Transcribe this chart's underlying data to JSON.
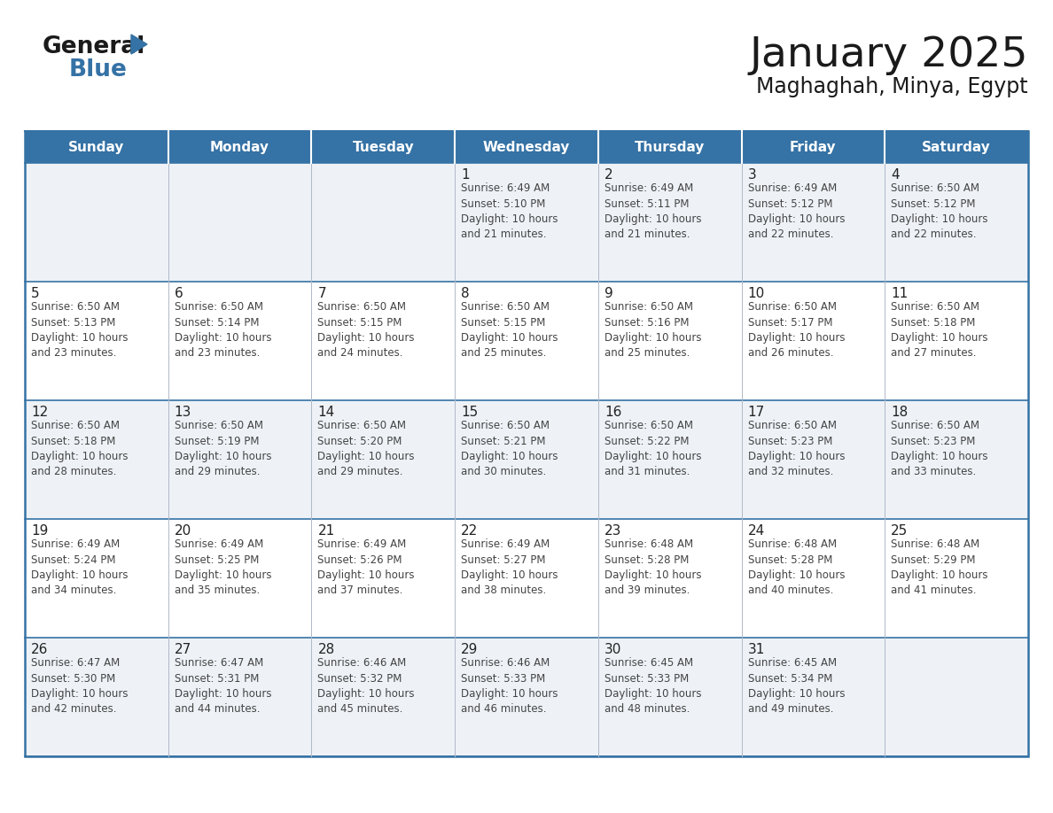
{
  "title": "January 2025",
  "subtitle": "Maghaghah, Minya, Egypt",
  "days_of_week": [
    "Sunday",
    "Monday",
    "Tuesday",
    "Wednesday",
    "Thursday",
    "Friday",
    "Saturday"
  ],
  "header_bg": "#3572a5",
  "header_text": "#ffffff",
  "cell_bg_light": "#eef2f7",
  "cell_bg_white": "#ffffff",
  "border_color": "#3572a5",
  "text_color": "#333333",
  "calendar": [
    [
      {
        "day": "",
        "info": ""
      },
      {
        "day": "",
        "info": ""
      },
      {
        "day": "",
        "info": ""
      },
      {
        "day": "1",
        "info": "Sunrise: 6:49 AM\nSunset: 5:10 PM\nDaylight: 10 hours\nand 21 minutes."
      },
      {
        "day": "2",
        "info": "Sunrise: 6:49 AM\nSunset: 5:11 PM\nDaylight: 10 hours\nand 21 minutes."
      },
      {
        "day": "3",
        "info": "Sunrise: 6:49 AM\nSunset: 5:12 PM\nDaylight: 10 hours\nand 22 minutes."
      },
      {
        "day": "4",
        "info": "Sunrise: 6:50 AM\nSunset: 5:12 PM\nDaylight: 10 hours\nand 22 minutes."
      }
    ],
    [
      {
        "day": "5",
        "info": "Sunrise: 6:50 AM\nSunset: 5:13 PM\nDaylight: 10 hours\nand 23 minutes."
      },
      {
        "day": "6",
        "info": "Sunrise: 6:50 AM\nSunset: 5:14 PM\nDaylight: 10 hours\nand 23 minutes."
      },
      {
        "day": "7",
        "info": "Sunrise: 6:50 AM\nSunset: 5:15 PM\nDaylight: 10 hours\nand 24 minutes."
      },
      {
        "day": "8",
        "info": "Sunrise: 6:50 AM\nSunset: 5:15 PM\nDaylight: 10 hours\nand 25 minutes."
      },
      {
        "day": "9",
        "info": "Sunrise: 6:50 AM\nSunset: 5:16 PM\nDaylight: 10 hours\nand 25 minutes."
      },
      {
        "day": "10",
        "info": "Sunrise: 6:50 AM\nSunset: 5:17 PM\nDaylight: 10 hours\nand 26 minutes."
      },
      {
        "day": "11",
        "info": "Sunrise: 6:50 AM\nSunset: 5:18 PM\nDaylight: 10 hours\nand 27 minutes."
      }
    ],
    [
      {
        "day": "12",
        "info": "Sunrise: 6:50 AM\nSunset: 5:18 PM\nDaylight: 10 hours\nand 28 minutes."
      },
      {
        "day": "13",
        "info": "Sunrise: 6:50 AM\nSunset: 5:19 PM\nDaylight: 10 hours\nand 29 minutes."
      },
      {
        "day": "14",
        "info": "Sunrise: 6:50 AM\nSunset: 5:20 PM\nDaylight: 10 hours\nand 29 minutes."
      },
      {
        "day": "15",
        "info": "Sunrise: 6:50 AM\nSunset: 5:21 PM\nDaylight: 10 hours\nand 30 minutes."
      },
      {
        "day": "16",
        "info": "Sunrise: 6:50 AM\nSunset: 5:22 PM\nDaylight: 10 hours\nand 31 minutes."
      },
      {
        "day": "17",
        "info": "Sunrise: 6:50 AM\nSunset: 5:23 PM\nDaylight: 10 hours\nand 32 minutes."
      },
      {
        "day": "18",
        "info": "Sunrise: 6:50 AM\nSunset: 5:23 PM\nDaylight: 10 hours\nand 33 minutes."
      }
    ],
    [
      {
        "day": "19",
        "info": "Sunrise: 6:49 AM\nSunset: 5:24 PM\nDaylight: 10 hours\nand 34 minutes."
      },
      {
        "day": "20",
        "info": "Sunrise: 6:49 AM\nSunset: 5:25 PM\nDaylight: 10 hours\nand 35 minutes."
      },
      {
        "day": "21",
        "info": "Sunrise: 6:49 AM\nSunset: 5:26 PM\nDaylight: 10 hours\nand 37 minutes."
      },
      {
        "day": "22",
        "info": "Sunrise: 6:49 AM\nSunset: 5:27 PM\nDaylight: 10 hours\nand 38 minutes."
      },
      {
        "day": "23",
        "info": "Sunrise: 6:48 AM\nSunset: 5:28 PM\nDaylight: 10 hours\nand 39 minutes."
      },
      {
        "day": "24",
        "info": "Sunrise: 6:48 AM\nSunset: 5:28 PM\nDaylight: 10 hours\nand 40 minutes."
      },
      {
        "day": "25",
        "info": "Sunrise: 6:48 AM\nSunset: 5:29 PM\nDaylight: 10 hours\nand 41 minutes."
      }
    ],
    [
      {
        "day": "26",
        "info": "Sunrise: 6:47 AM\nSunset: 5:30 PM\nDaylight: 10 hours\nand 42 minutes."
      },
      {
        "day": "27",
        "info": "Sunrise: 6:47 AM\nSunset: 5:31 PM\nDaylight: 10 hours\nand 44 minutes."
      },
      {
        "day": "28",
        "info": "Sunrise: 6:46 AM\nSunset: 5:32 PM\nDaylight: 10 hours\nand 45 minutes."
      },
      {
        "day": "29",
        "info": "Sunrise: 6:46 AM\nSunset: 5:33 PM\nDaylight: 10 hours\nand 46 minutes."
      },
      {
        "day": "30",
        "info": "Sunrise: 6:45 AM\nSunset: 5:33 PM\nDaylight: 10 hours\nand 48 minutes."
      },
      {
        "day": "31",
        "info": "Sunrise: 6:45 AM\nSunset: 5:34 PM\nDaylight: 10 hours\nand 49 minutes."
      },
      {
        "day": "",
        "info": ""
      }
    ]
  ],
  "logo_general_color": "#1a1a1a",
  "logo_blue_color": "#3572a5",
  "logo_triangle_color": "#3572a5"
}
